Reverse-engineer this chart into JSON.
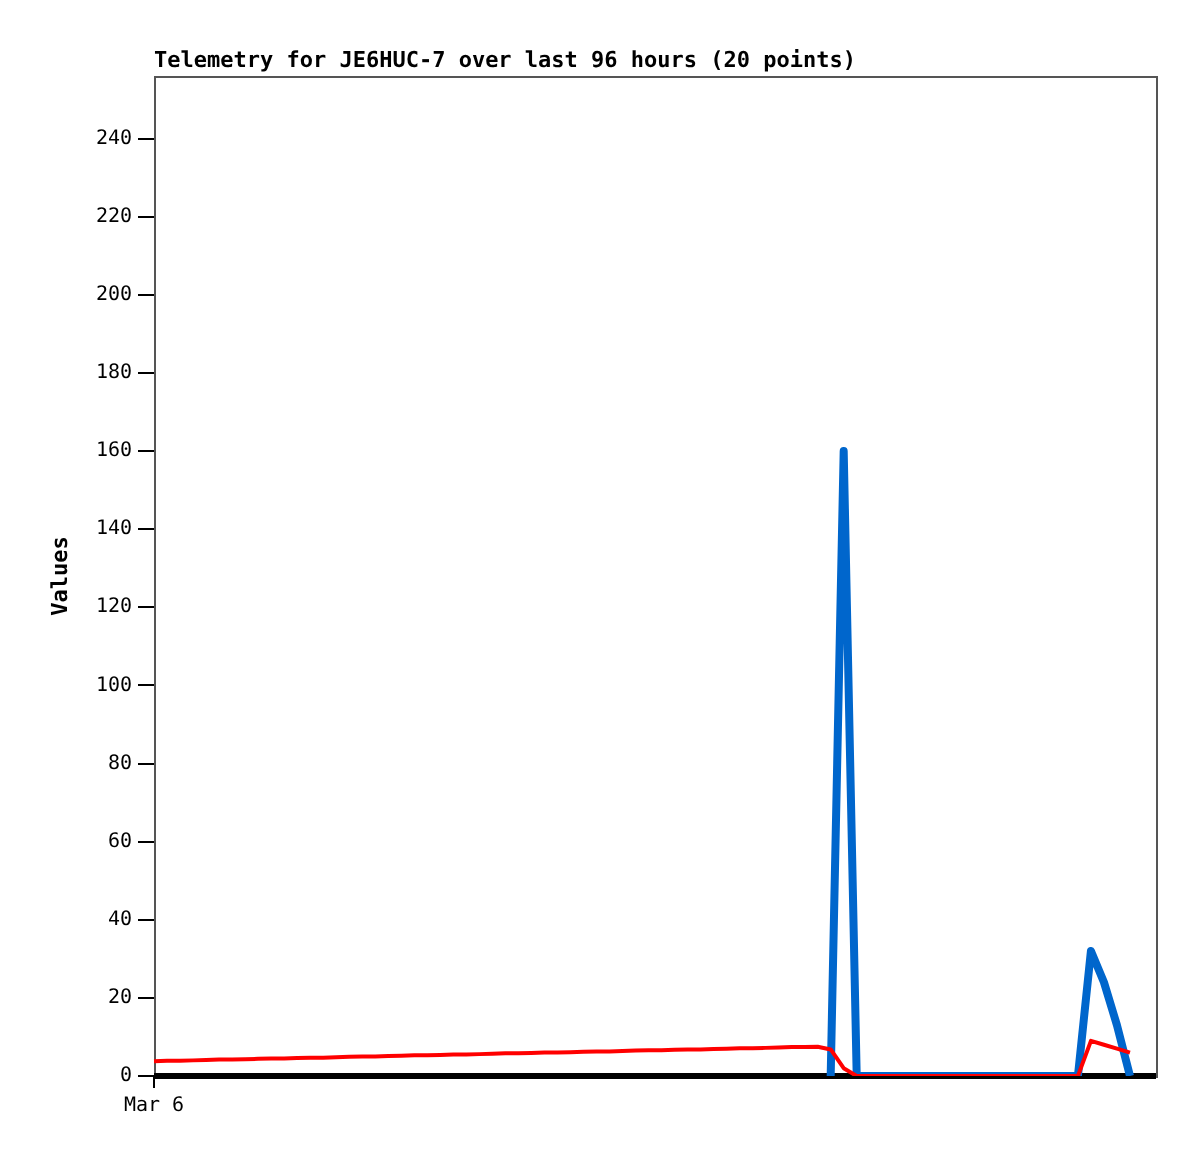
{
  "chart_data": {
    "type": "line",
    "title": "Telemetry for JE6HUC-7 over last 96 hours (20 points)",
    "ylabel": "Values",
    "categories": [
      "Mar 6",
      null,
      null,
      null,
      null,
      null,
      null,
      null,
      null,
      null,
      null,
      null,
      null,
      null,
      null,
      null,
      null,
      null,
      null,
      null,
      null,
      null,
      null,
      null,
      null,
      null,
      null,
      null,
      null,
      null,
      null,
      null,
      null,
      null,
      null,
      null,
      null,
      null,
      null,
      null,
      null,
      null,
      null,
      null,
      null,
      null,
      null,
      null,
      null,
      null,
      null,
      null,
      null,
      null,
      null,
      null,
      null,
      null,
      null,
      null,
      null,
      null,
      null,
      null,
      null,
      null,
      null,
      null,
      null,
      null,
      null,
      null,
      null,
      null,
      null,
      null,
      null,
      null
    ],
    "ylim": [
      0,
      256
    ],
    "yticks": [
      0,
      20,
      40,
      60,
      80,
      100,
      120,
      140,
      160,
      180,
      200,
      220,
      240
    ],
    "grid": false,
    "legend": false,
    "marker": "none",
    "line_style": "solid",
    "series": [
      {
        "color": "#ff0000",
        "values": [
          3.8,
          3.9,
          3.9,
          4,
          4.1,
          4.2,
          4.2,
          4.3,
          4.4,
          4.5,
          4.5,
          4.6,
          4.7,
          4.7,
          4.8,
          4.9,
          5,
          5,
          5.1,
          5.2,
          5.3,
          5.3,
          5.4,
          5.5,
          5.5,
          5.6,
          5.7,
          5.8,
          5.8,
          5.9,
          6,
          6,
          6.1,
          6.2,
          6.3,
          6.3,
          6.4,
          6.5,
          6.6,
          6.6,
          6.7,
          6.8,
          6.8,
          6.9,
          7,
          7.1,
          7.1,
          7.2,
          7.3,
          7.4,
          7.4,
          7.5,
          6.8,
          2,
          0,
          0,
          0,
          0,
          0,
          0,
          0,
          0,
          0,
          0,
          0,
          0,
          0,
          0,
          0,
          0,
          0,
          0,
          9,
          8,
          7,
          6,
          null,
          null
        ]
      },
      {
        "color": "#0066cc",
        "values": [
          null,
          null,
          null,
          null,
          null,
          null,
          null,
          null,
          null,
          null,
          null,
          null,
          null,
          null,
          null,
          null,
          null,
          null,
          null,
          null,
          null,
          null,
          null,
          null,
          null,
          null,
          null,
          null,
          null,
          null,
          null,
          null,
          null,
          null,
          null,
          null,
          null,
          null,
          null,
          null,
          null,
          null,
          null,
          null,
          null,
          null,
          null,
          null,
          null,
          null,
          null,
          null,
          0,
          160,
          0,
          0,
          0,
          0,
          0,
          0,
          0,
          0,
          0,
          0,
          0,
          0,
          0,
          0,
          0,
          0,
          0,
          0,
          32,
          24,
          13,
          0,
          null,
          null
        ]
      }
    ]
  }
}
